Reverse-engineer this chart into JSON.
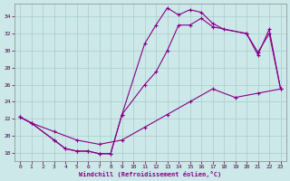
{
  "xlabel": "Windchill (Refroidissement éolien,°C)",
  "bg_color": "#cce8e8",
  "grid_color": "#aacccc",
  "line_color": "#880088",
  "xlim": [
    -0.5,
    23.5
  ],
  "ylim": [
    17.0,
    35.5
  ],
  "yticks": [
    18,
    20,
    22,
    24,
    26,
    28,
    30,
    32,
    34
  ],
  "xticks": [
    0,
    1,
    2,
    3,
    4,
    5,
    6,
    7,
    8,
    9,
    10,
    11,
    12,
    13,
    14,
    15,
    16,
    17,
    18,
    19,
    20,
    21,
    22,
    23
  ],
  "curve1_x": [
    0,
    1,
    3,
    4,
    5,
    6,
    7,
    8,
    9,
    11,
    12,
    13,
    14,
    15,
    16,
    17,
    18,
    20,
    21,
    22,
    23
  ],
  "curve1_y": [
    22.2,
    21.5,
    19.5,
    18.5,
    18.2,
    18.2,
    17.9,
    17.9,
    22.5,
    30.8,
    33.0,
    35.0,
    34.2,
    34.8,
    34.5,
    33.2,
    32.5,
    32.0,
    29.8,
    32.0,
    25.5
  ],
  "curve2_x": [
    0,
    1,
    3,
    4,
    5,
    6,
    7,
    8,
    9,
    11,
    12,
    13,
    14,
    15,
    16,
    17,
    20,
    21,
    22,
    23
  ],
  "curve2_y": [
    22.2,
    21.5,
    19.5,
    18.5,
    18.2,
    18.2,
    17.9,
    17.9,
    22.5,
    26.0,
    27.5,
    30.0,
    33.0,
    33.0,
    33.8,
    32.8,
    32.0,
    29.5,
    32.5,
    25.5
  ],
  "curve3_x": [
    0,
    1,
    3,
    5,
    7,
    9,
    11,
    13,
    15,
    17,
    19,
    21,
    23
  ],
  "curve3_y": [
    22.2,
    21.5,
    20.5,
    19.5,
    19.0,
    19.5,
    21.0,
    22.5,
    24.0,
    25.5,
    24.5,
    25.0,
    25.5
  ]
}
